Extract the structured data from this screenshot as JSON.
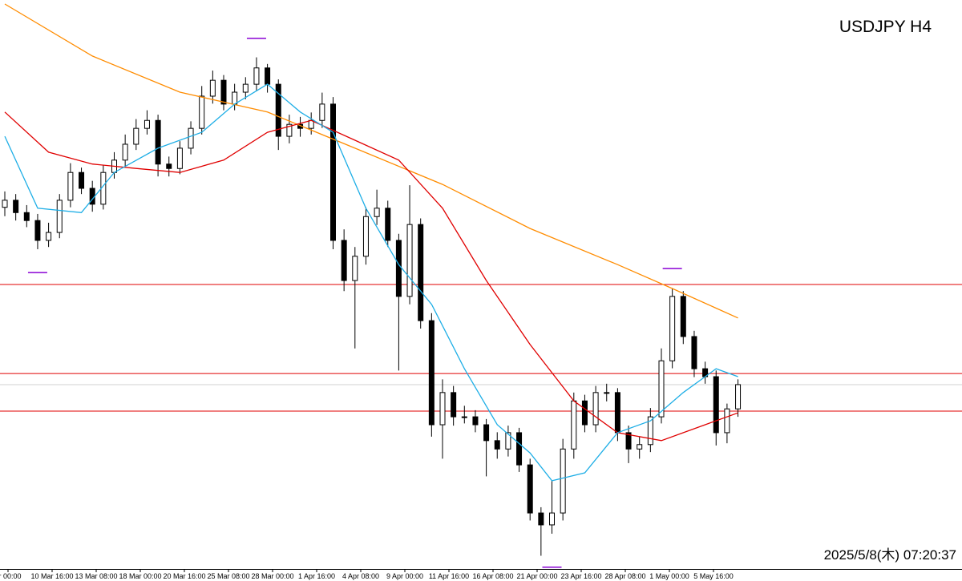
{
  "chart_data": {
    "type": "candlestick",
    "title": "USDJPY H4",
    "timestamp": "2025/5/8(木) 07:20:37",
    "x_labels": [
      "ar 00:00",
      "10 Mar 16:00",
      "13 Mar 08:00",
      "18 Mar 00:00",
      "20 Mar 16:00",
      "25 Mar 08:00",
      "28 Mar 00:00",
      "1 Apr 16:00",
      "4 Apr 08:00",
      "9 Apr 00:00",
      "11 Apr 16:00",
      "16 Apr 08:00",
      "21 Apr 00:00",
      "23 Apr 16:00",
      "28 Apr 08:00",
      "1 May 00:00",
      "5 May 16:00"
    ],
    "ylim": [
      139.6,
      152.5
    ],
    "up_color": "#ffffff",
    "down_color": "#000000",
    "open": [
      147.8,
      147.96,
      147.68,
      147.5,
      147.05,
      147.23,
      147.96,
      148.59,
      148.23,
      147.87,
      148.59,
      148.87,
      149.23,
      149.59,
      149.77,
      148.78,
      148.68,
      149.14,
      149.59,
      150.32,
      150.68,
      150.14,
      150.41,
      150.59,
      150.96,
      150.59,
      149.41,
      149.68,
      149.59,
      149.77,
      150.14,
      147.05,
      146.14,
      146.69,
      147.59,
      147.78,
      147.05,
      145.78,
      147.41,
      145.23,
      142.87,
      143.6,
      143.05,
      143.05,
      142.87,
      142.51,
      142.32,
      142.69,
      141.96,
      140.87,
      140.6,
      140.87,
      142.32,
      143.41,
      142.87,
      143.6,
      143.6,
      142.69,
      142.32,
      142.42,
      143.05,
      144.32,
      145.78,
      144.87,
      144.14,
      143.96,
      142.69,
      143.23
    ],
    "high": [
      148.16,
      148.1,
      147.85,
      147.65,
      147.45,
      148.1,
      148.8,
      148.7,
      148.4,
      148.75,
      149.05,
      149.45,
      149.8,
      150.0,
      149.9,
      148.95,
      149.3,
      149.75,
      150.55,
      150.9,
      150.8,
      150.6,
      150.75,
      151.2,
      151.05,
      150.7,
      149.9,
      149.85,
      149.95,
      150.4,
      150.3,
      147.3,
      146.9,
      147.8,
      148.2,
      147.95,
      147.2,
      148.3,
      147.55,
      145.4,
      143.9,
      143.75,
      143.3,
      143.2,
      143.0,
      142.7,
      142.85,
      142.8,
      142.1,
      141.0,
      141.6,
      142.55,
      143.6,
      143.55,
      143.75,
      143.8,
      143.7,
      142.85,
      142.6,
      143.25,
      144.6,
      145.95,
      145.9,
      145.0,
      144.3,
      144.1,
      143.35,
      143.9
    ],
    "low": [
      147.6,
      147.5,
      147.35,
      146.85,
      146.9,
      147.1,
      147.8,
      148.1,
      147.7,
      147.75,
      148.45,
      148.7,
      149.1,
      149.45,
      148.5,
      148.5,
      148.55,
      149.0,
      149.45,
      150.15,
      150.0,
      150.0,
      150.25,
      150.45,
      150.4,
      149.1,
      149.25,
      149.4,
      149.45,
      149.6,
      146.85,
      145.9,
      144.6,
      146.5,
      147.4,
      146.9,
      144.1,
      145.6,
      145.05,
      142.6,
      142.1,
      142.85,
      142.9,
      142.7,
      141.7,
      142.1,
      142.15,
      141.8,
      140.7,
      139.9,
      140.4,
      140.7,
      142.1,
      142.7,
      142.7,
      143.4,
      142.5,
      142.0,
      142.1,
      142.25,
      142.9,
      144.15,
      144.7,
      143.95,
      143.8,
      142.4,
      142.45,
      143.05
    ],
    "close": [
      147.96,
      147.68,
      147.5,
      147.05,
      147.23,
      147.96,
      148.59,
      148.23,
      147.87,
      148.59,
      148.87,
      149.23,
      149.59,
      149.77,
      148.78,
      148.68,
      149.14,
      149.59,
      150.32,
      150.68,
      150.14,
      150.41,
      150.59,
      150.96,
      150.59,
      149.41,
      149.68,
      149.59,
      149.77,
      150.14,
      147.05,
      146.14,
      146.69,
      147.59,
      147.78,
      147.05,
      145.78,
      147.41,
      145.23,
      142.87,
      143.6,
      143.05,
      143.05,
      142.87,
      142.51,
      142.32,
      142.69,
      141.96,
      140.87,
      140.6,
      140.87,
      142.32,
      143.41,
      142.87,
      143.6,
      143.6,
      142.69,
      142.32,
      142.42,
      143.05,
      144.32,
      145.78,
      144.87,
      144.14,
      143.96,
      142.69,
      143.23,
      143.78
    ],
    "lines": [
      {
        "color": "#ff8c00",
        "x": [
          0,
          8,
          16,
          24,
          32,
          40,
          48,
          56,
          61,
          67
        ],
        "values": [
          152.41,
          151.23,
          150.41,
          149.96,
          149.14,
          148.32,
          147.32,
          146.5,
          145.96,
          145.29
        ]
      },
      {
        "color": "#e00000",
        "x": [
          0,
          4,
          8,
          12,
          16,
          20,
          24,
          28,
          32,
          36,
          40,
          44,
          48,
          52,
          56,
          60,
          64,
          67
        ],
        "values": [
          149.96,
          149.05,
          148.78,
          148.68,
          148.59,
          148.87,
          149.5,
          149.77,
          149.32,
          148.87,
          147.78,
          146.14,
          144.69,
          143.41,
          142.69,
          142.51,
          142.87,
          143.14
        ]
      },
      {
        "color": "#1eaee6",
        "x": [
          0,
          3,
          7,
          10,
          14,
          18,
          21,
          24,
          27,
          30,
          33,
          36,
          39,
          42,
          45,
          48,
          50,
          53,
          56,
          59,
          62,
          65,
          67
        ],
        "values": [
          149.41,
          147.78,
          147.68,
          148.59,
          149.14,
          149.5,
          150.14,
          150.59,
          149.96,
          149.5,
          147.78,
          146.5,
          145.6,
          144.14,
          142.87,
          142.23,
          141.6,
          141.78,
          142.69,
          142.96,
          143.6,
          144.14,
          143.96
        ]
      }
    ],
    "hlines": [
      {
        "value": 146.05,
        "color": "#e00000"
      },
      {
        "value": 144.03,
        "color": "#e00000"
      },
      {
        "value": 143.18,
        "color": "#e00000"
      },
      {
        "value": 143.78,
        "color": "#d0d0d0"
      }
    ],
    "markers": {
      "color": "#8a00d4",
      "x": [
        23,
        3,
        61,
        50
      ],
      "values": [
        151.63,
        146.32,
        146.41,
        139.64
      ]
    }
  }
}
